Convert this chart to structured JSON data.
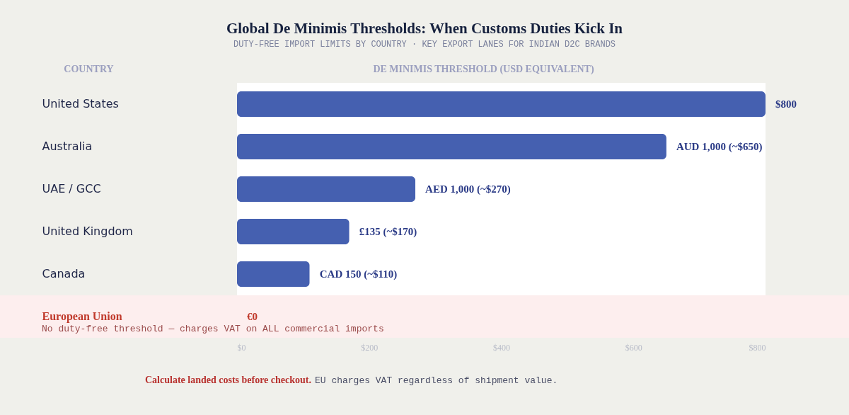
{
  "chart_data": {
    "type": "bar",
    "orientation": "horizontal",
    "title": "Global De Minimis Thresholds: When Customs Duties Kick In",
    "subtitle": "DUTY-FREE IMPORT LIMITS BY COUNTRY · KEY EXPORT LANES FOR INDIAN D2C BRANDS",
    "ylabel": "COUNTRY",
    "xlabel": "DE MINIMIS THRESHOLD (USD EQUIVALENT)",
    "categories": [
      "United States",
      "Australia",
      "UAE / GCC",
      "United Kingdom",
      "Canada",
      "European Union"
    ],
    "values": [
      800,
      650,
      270,
      170,
      110,
      0
    ],
    "colors": [
      "#4560b0",
      "#4560b0",
      "#4560b0",
      "#4560b0",
      "#4560b0",
      "#c0392b"
    ],
    "value_labels": [
      "$800",
      "AUD 1,000 (~$650)",
      "AED 1,000 (~$270)",
      "£135 (~$170)",
      "CAD 150 (~$110)",
      "€0"
    ],
    "xlim": [
      0,
      800
    ],
    "xticks": [
      {
        "value": 0,
        "label": "$0"
      },
      {
        "value": 200,
        "label": "$200"
      },
      {
        "value": 400,
        "label": "$400"
      },
      {
        "value": 600,
        "label": "$600"
      },
      {
        "value": 800,
        "label": "$800"
      }
    ],
    "bands": [
      {
        "axis": "y",
        "from": "European Union",
        "to": "European Union",
        "color": "#fdeeee"
      }
    ],
    "annotations": [
      "No duty-free threshold — charges VAT on ALL commercial imports",
      "Calculate landed costs before checkout.",
      "EU charges VAT regardless of shipment value."
    ]
  }
}
